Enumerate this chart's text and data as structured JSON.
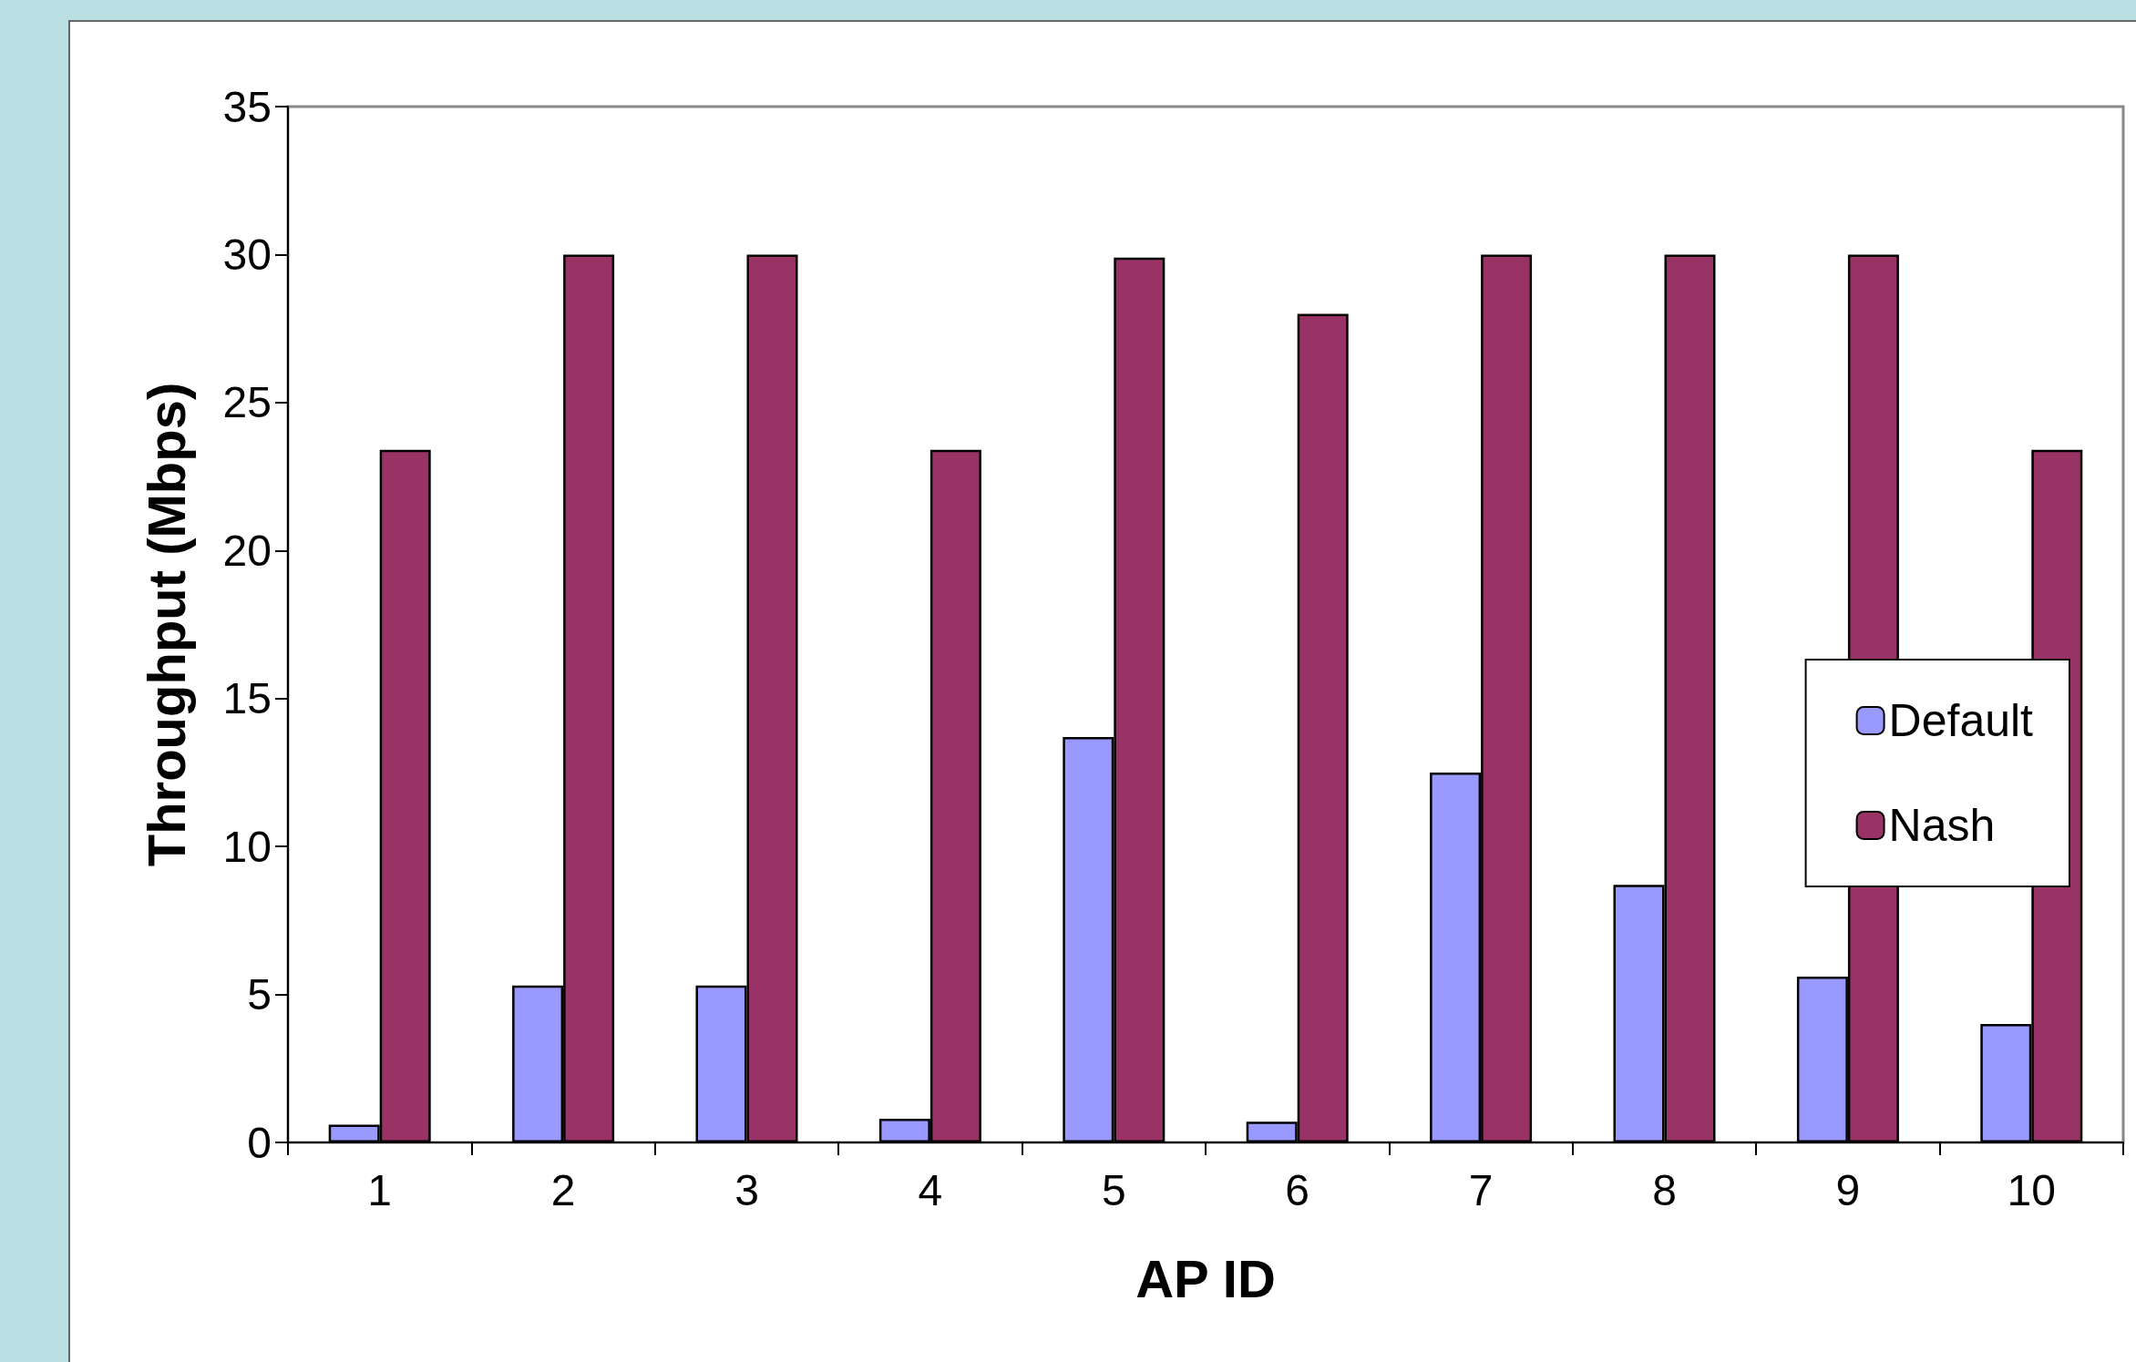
{
  "chart_data": {
    "type": "bar",
    "xlabel": "AP ID",
    "ylabel": "Throughput (Mbps)",
    "categories": [
      "1",
      "2",
      "3",
      "4",
      "5",
      "6",
      "7",
      "8",
      "9",
      "10"
    ],
    "series": [
      {
        "name": "Default",
        "color": "#9999ff",
        "values": [
          0.6,
          5.3,
          5.3,
          0.8,
          13.7,
          0.7,
          12.5,
          8.7,
          5.6,
          4.0
        ]
      },
      {
        "name": "Nash",
        "color": "#993366",
        "values": [
          23.4,
          30,
          30,
          23.4,
          29.9,
          28.0,
          30,
          30,
          30,
          23.4
        ]
      }
    ],
    "ylim": [
      0,
      35
    ],
    "yticks": [
      0,
      5,
      10,
      15,
      20,
      25,
      30,
      35
    ],
    "grid": false,
    "legend": "right"
  }
}
